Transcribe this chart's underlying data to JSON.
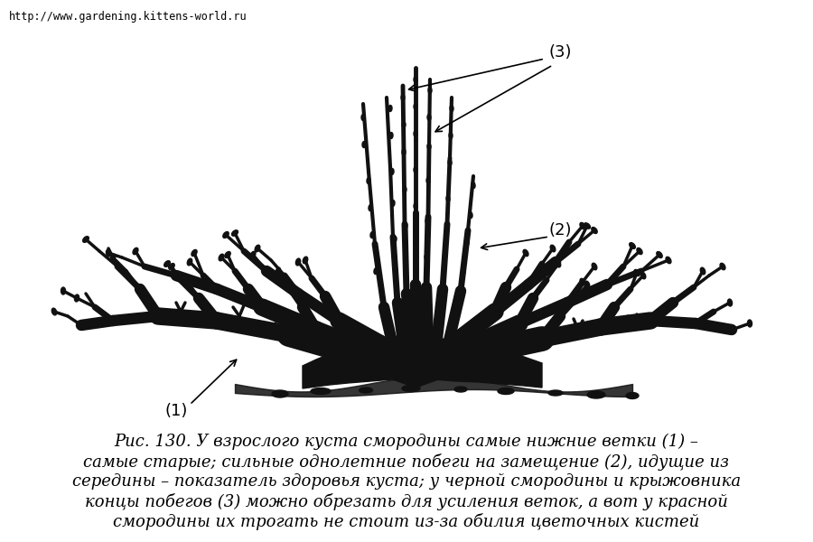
{
  "background_color": "#ffffff",
  "url_text": "http://www.gardening.kittens-world.ru",
  "url_fontsize": 8.5,
  "label1": "(1)",
  "label2": "(2)",
  "label3": "(3)",
  "caption_line1": "Рис. 130. У взрослого куста смородины самые нижние ветки (1) –",
  "caption_line2": "самые старые; сильные однолетние побеги на замещение (2), идущие из",
  "caption_line3": "середины – показатель здоровья куста; у черной смородины и крыжовника",
  "caption_line4": "концы побегов (3) можно обрезать для усиления веток, а вот у красной",
  "caption_line5": "смородины их трогать не стоит из-за обилия цветочных кистей",
  "caption_fontsize": 13,
  "label_fontsize": 13
}
